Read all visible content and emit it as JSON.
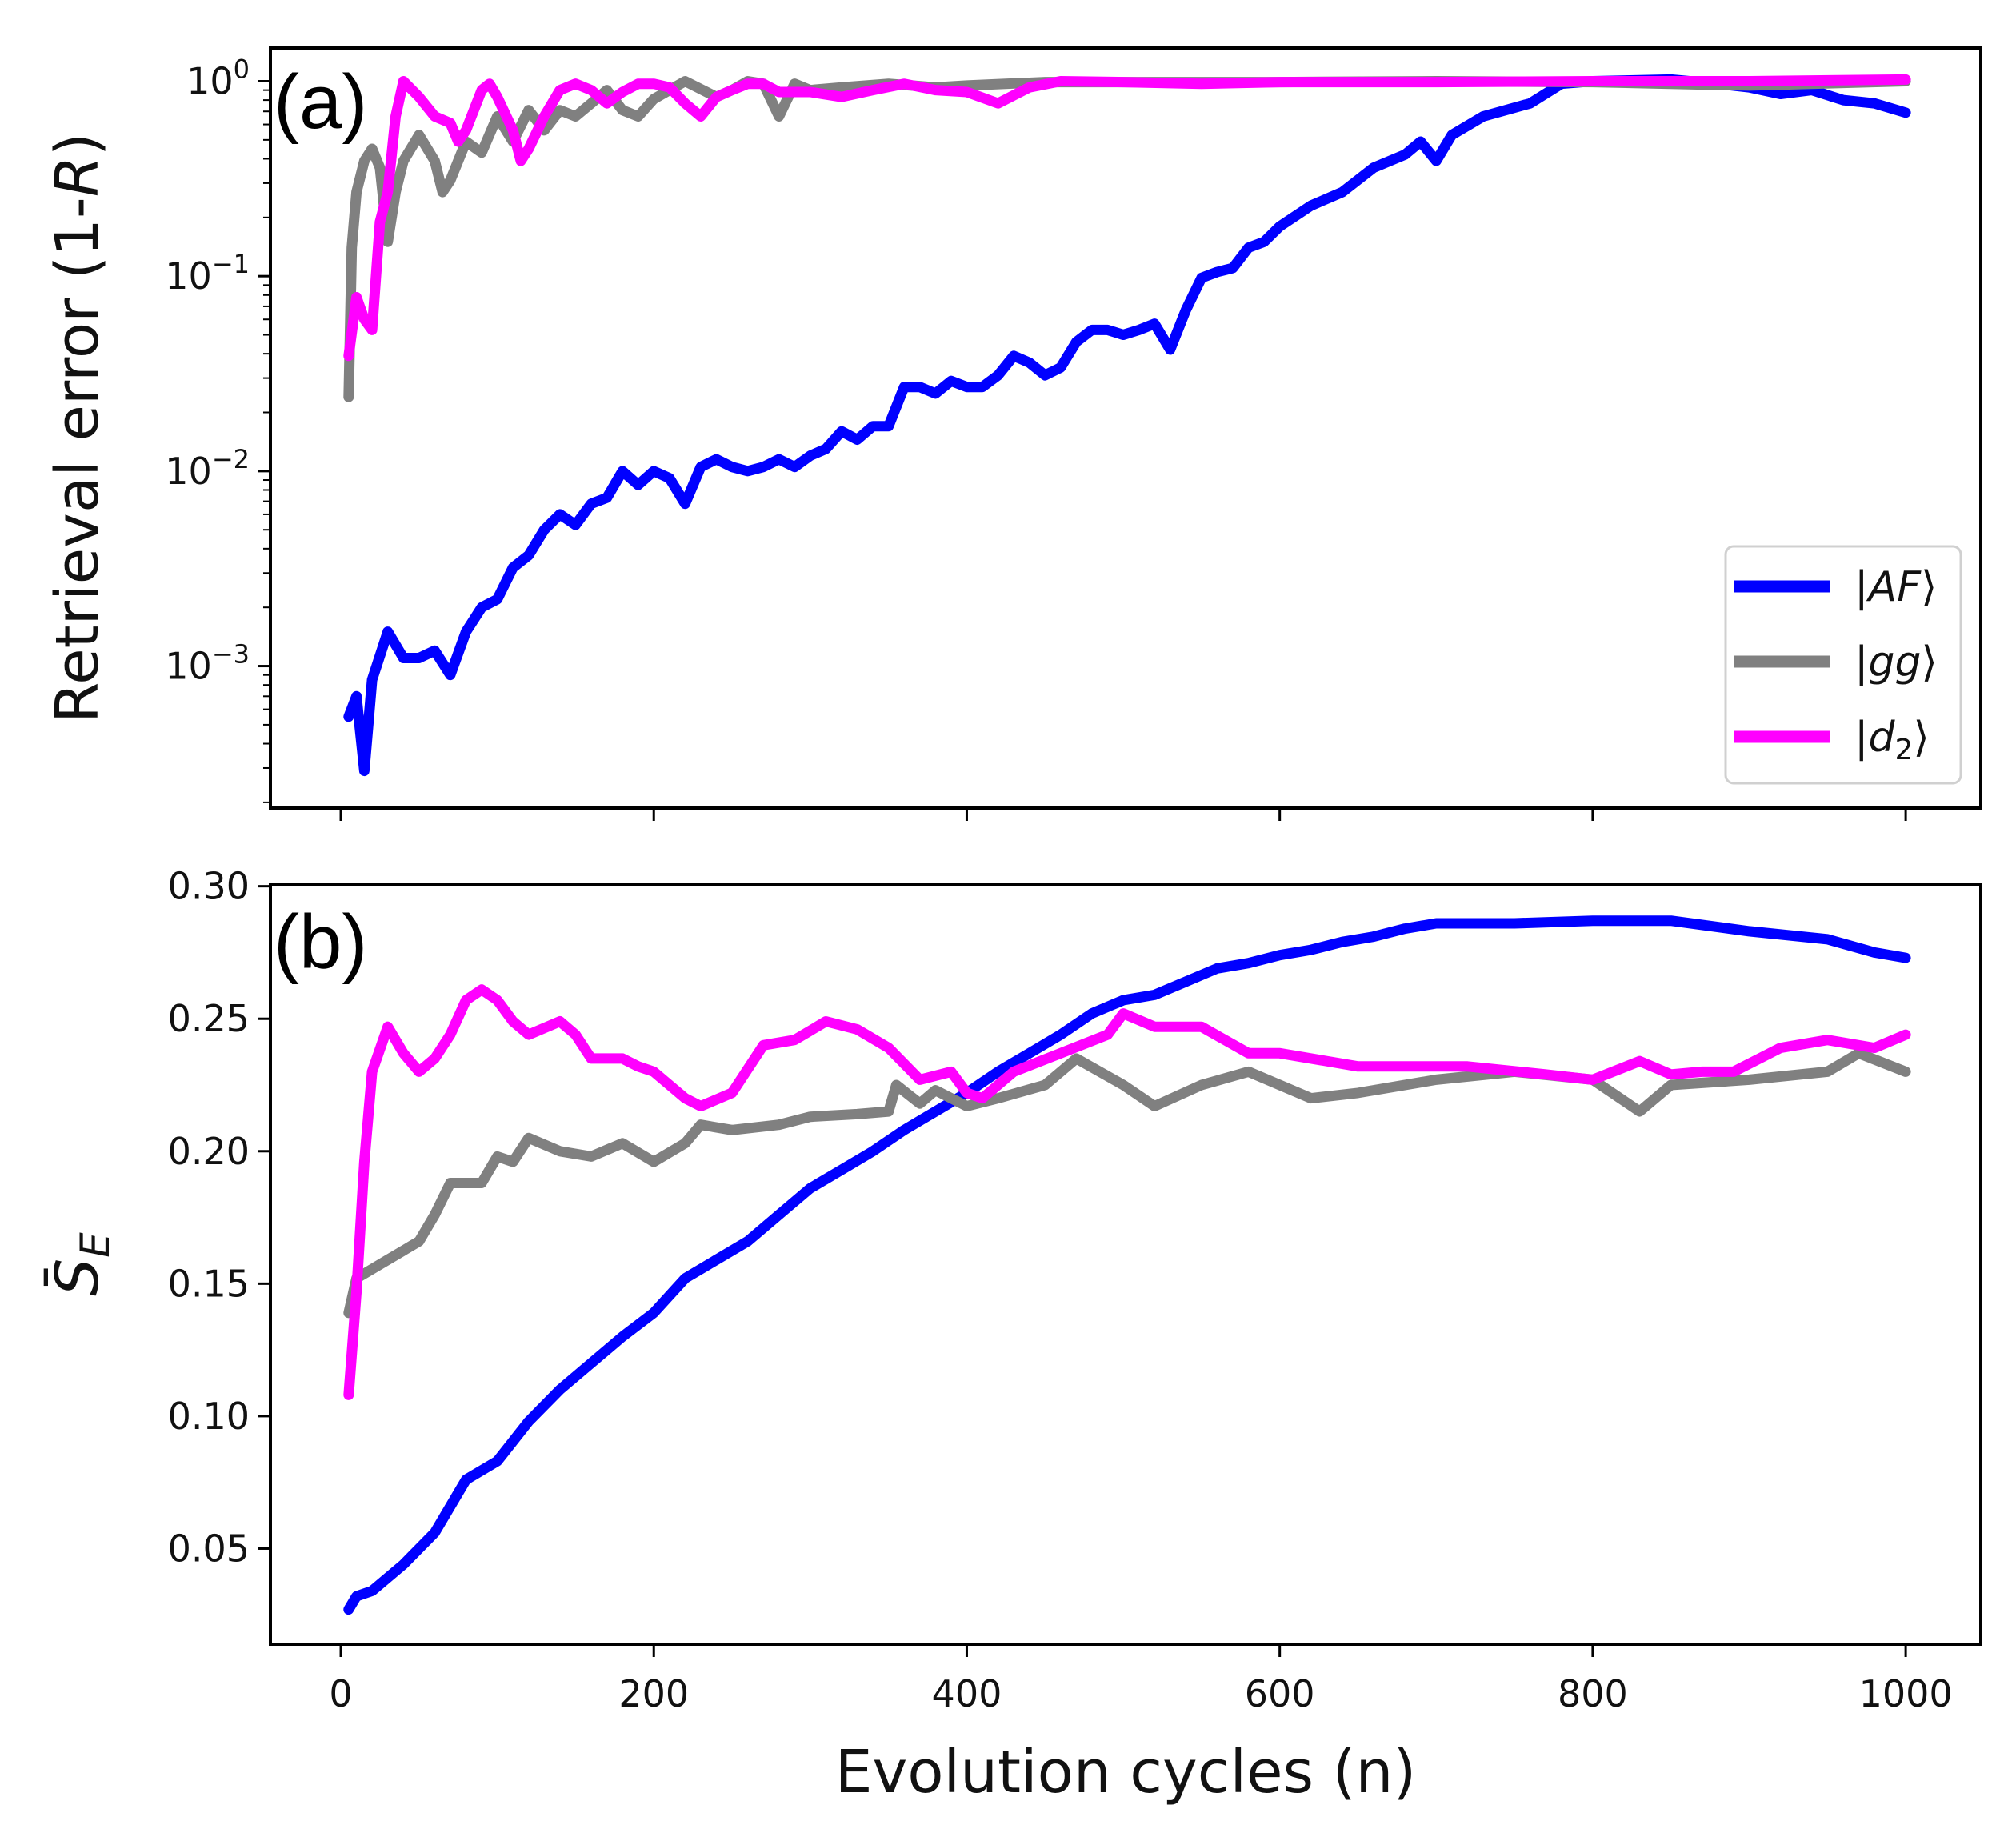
{
  "chart_data": [
    {
      "type": "line",
      "panel_label": "(a)",
      "ylabel_main": "Retrieval error (1-",
      "ylabel_italic": "R",
      "ylabel_end": ")",
      "yscale": "log",
      "ylim": [
        0.000187,
        1.48
      ],
      "xlim": [
        -45,
        1048
      ],
      "yticks": [
        {
          "v": 1,
          "base": "10",
          "exp": "0"
        },
        {
          "v": 0.1,
          "base": "10",
          "exp": "−1"
        },
        {
          "v": 0.01,
          "base": "10",
          "exp": "−2"
        },
        {
          "v": 0.001,
          "base": "10",
          "exp": "−3"
        }
      ],
      "xticks": [
        0,
        200,
        400,
        600,
        800,
        1000
      ],
      "legend": {
        "placement": "lower-right",
        "entries": [
          {
            "ket_open": "|",
            "name": "AF",
            "ket_close": "⟩",
            "color": "#0000ff"
          },
          {
            "ket_open": "|",
            "name": "gg",
            "ket_close": "⟩",
            "color": "#808080"
          },
          {
            "ket_open": "|",
            "name": "d",
            "sub": "2",
            "ket_close": "⟩",
            "color": "#ff00ff"
          }
        ]
      },
      "series": [
        {
          "name": "|AF⟩",
          "color": "#0000ff",
          "x": [
            5,
            10,
            15,
            20,
            30,
            40,
            50,
            60,
            70,
            80,
            90,
            100,
            110,
            120,
            130,
            140,
            150,
            160,
            170,
            180,
            190,
            200,
            210,
            220,
            230,
            240,
            250,
            260,
            270,
            280,
            290,
            300,
            310,
            320,
            330,
            340,
            350,
            360,
            370,
            380,
            390,
            400,
            410,
            420,
            430,
            440,
            450,
            460,
            470,
            480,
            490,
            500,
            510,
            520,
            530,
            540,
            550,
            560,
            570,
            580,
            590,
            600,
            620,
            640,
            660,
            680,
            690,
            700,
            710,
            730,
            760,
            780,
            800,
            850,
            880,
            900,
            920,
            940,
            960,
            980,
            1000
          ],
          "y": [
            0.00055,
            0.0007,
            0.00029,
            0.00085,
            0.0015,
            0.0011,
            0.0011,
            0.0012,
            0.0009,
            0.0015,
            0.002,
            0.0022,
            0.0032,
            0.0037,
            0.005,
            0.006,
            0.0053,
            0.0068,
            0.0073,
            0.01,
            0.0085,
            0.01,
            0.0092,
            0.0068,
            0.0105,
            0.0115,
            0.0105,
            0.01,
            0.0105,
            0.0115,
            0.0105,
            0.012,
            0.013,
            0.016,
            0.0145,
            0.017,
            0.017,
            0.027,
            0.027,
            0.025,
            0.029,
            0.027,
            0.027,
            0.031,
            0.039,
            0.036,
            0.031,
            0.034,
            0.046,
            0.053,
            0.053,
            0.05,
            0.053,
            0.057,
            0.042,
            0.067,
            0.098,
            0.105,
            0.11,
            0.14,
            0.15,
            0.18,
            0.23,
            0.27,
            0.36,
            0.42,
            0.49,
            0.39,
            0.53,
            0.66,
            0.77,
            0.97,
            1.0,
            1.02,
            0.97,
            0.93,
            0.86,
            0.9,
            0.8,
            0.77,
            0.69
          ]
        },
        {
          "name": "|gg⟩",
          "color": "#808080",
          "x": [
            5,
            7,
            10,
            15,
            20,
            25,
            30,
            35,
            40,
            50,
            60,
            65,
            70,
            80,
            90,
            100,
            110,
            120,
            130,
            140,
            150,
            160,
            170,
            180,
            190,
            200,
            210,
            220,
            240,
            250,
            260,
            270,
            280,
            290,
            300,
            320,
            350,
            380,
            400,
            450,
            500,
            600,
            700,
            800,
            900,
            1000
          ],
          "y": [
            0.024,
            0.14,
            0.27,
            0.39,
            0.45,
            0.36,
            0.15,
            0.27,
            0.39,
            0.53,
            0.39,
            0.27,
            0.31,
            0.49,
            0.43,
            0.66,
            0.49,
            0.71,
            0.56,
            0.71,
            0.66,
            0.77,
            0.9,
            0.71,
            0.66,
            0.81,
            0.9,
            1.0,
            0.83,
            0.9,
            1.0,
            0.97,
            0.66,
            0.97,
            0.9,
            0.93,
            0.97,
            0.93,
            0.95,
            0.99,
            0.99,
            0.99,
            1.0,
            0.99,
            0.95,
            1.0
          ]
        },
        {
          "name": "|d₂⟩",
          "color": "#ff00ff",
          "x": [
            5,
            10,
            15,
            20,
            25,
            30,
            35,
            40,
            50,
            60,
            70,
            75,
            80,
            90,
            95,
            100,
            110,
            115,
            120,
            130,
            140,
            150,
            160,
            170,
            180,
            190,
            200,
            210,
            220,
            230,
            240,
            250,
            260,
            270,
            280,
            300,
            320,
            340,
            360,
            380,
            400,
            420,
            440,
            460,
            500,
            550,
            600,
            700,
            800,
            900,
            1000
          ],
          "y": [
            0.039,
            0.078,
            0.06,
            0.053,
            0.19,
            0.27,
            0.66,
            1.0,
            0.83,
            0.66,
            0.61,
            0.49,
            0.56,
            0.9,
            0.97,
            0.83,
            0.56,
            0.39,
            0.45,
            0.66,
            0.9,
            0.97,
            0.9,
            0.77,
            0.88,
            0.97,
            0.97,
            0.93,
            0.77,
            0.66,
            0.83,
            0.9,
            0.97,
            0.97,
            0.88,
            0.88,
            0.83,
            0.9,
            0.97,
            0.9,
            0.88,
            0.77,
            0.93,
            1.0,
            0.99,
            0.97,
            0.99,
            0.99,
            1.0,
            1.0,
            1.02
          ]
        }
      ]
    },
    {
      "type": "line",
      "panel_label": "(b)",
      "ylabel_base": "S",
      "ylabel_sub": "E",
      "ylabel_bar": "¯",
      "xlabel": "Evolution cycles (n)",
      "ylim": [
        0.0139,
        0.3005
      ],
      "xlim": [
        -45,
        1048
      ],
      "yticks": [
        "0.30",
        "0.25",
        "0.20",
        "0.15",
        "0.10",
        "0.05"
      ],
      "xticks": [
        "0",
        "200",
        "400",
        "600",
        "800",
        "1000"
      ],
      "series": [
        {
          "name": "|AF⟩",
          "color": "#0000ff",
          "x": [
            5,
            10,
            20,
            40,
            60,
            80,
            100,
            120,
            140,
            160,
            180,
            200,
            220,
            240,
            260,
            280,
            300,
            320,
            340,
            360,
            380,
            400,
            420,
            440,
            460,
            480,
            500,
            520,
            540,
            560,
            580,
            600,
            620,
            640,
            660,
            680,
            700,
            750,
            800,
            850,
            900,
            950,
            980,
            1000
          ],
          "y": [
            0.027,
            0.032,
            0.034,
            0.044,
            0.056,
            0.076,
            0.083,
            0.098,
            0.11,
            0.12,
            0.13,
            0.139,
            0.152,
            0.159,
            0.166,
            0.176,
            0.186,
            0.193,
            0.2,
            0.208,
            0.215,
            0.222,
            0.23,
            0.237,
            0.244,
            0.252,
            0.257,
            0.259,
            0.264,
            0.269,
            0.271,
            0.274,
            0.276,
            0.279,
            0.281,
            0.284,
            0.286,
            0.286,
            0.287,
            0.287,
            0.283,
            0.28,
            0.275,
            0.273
          ]
        },
        {
          "name": "|gg⟩",
          "color": "#808080",
          "x": [
            5,
            10,
            30,
            50,
            60,
            70,
            80,
            90,
            100,
            110,
            120,
            140,
            160,
            180,
            200,
            220,
            230,
            250,
            280,
            300,
            330,
            350,
            355,
            370,
            380,
            400,
            420,
            450,
            470,
            500,
            520,
            550,
            580,
            600,
            620,
            650,
            700,
            750,
            800,
            830,
            850,
            900,
            950,
            970,
            1000
          ],
          "y": [
            0.139,
            0.152,
            0.159,
            0.166,
            0.176,
            0.188,
            0.188,
            0.188,
            0.198,
            0.196,
            0.205,
            0.2,
            0.198,
            0.203,
            0.196,
            0.203,
            0.21,
            0.208,
            0.21,
            0.213,
            0.214,
            0.215,
            0.225,
            0.218,
            0.223,
            0.217,
            0.22,
            0.225,
            0.235,
            0.225,
            0.217,
            0.225,
            0.23,
            0.225,
            0.22,
            0.222,
            0.227,
            0.23,
            0.227,
            0.215,
            0.225,
            0.227,
            0.23,
            0.237,
            0.23
          ]
        },
        {
          "name": "|d₂⟩",
          "color": "#ff00ff",
          "x": [
            5,
            10,
            15,
            20,
            30,
            40,
            50,
            60,
            70,
            80,
            90,
            100,
            110,
            120,
            140,
            150,
            160,
            180,
            190,
            200,
            220,
            230,
            250,
            270,
            290,
            310,
            330,
            350,
            370,
            390,
            400,
            410,
            430,
            460,
            490,
            500,
            520,
            550,
            580,
            600,
            650,
            680,
            720,
            770,
            800,
            830,
            850,
            870,
            890,
            920,
            950,
            980,
            1000
          ],
          "y": [
            0.108,
            0.147,
            0.196,
            0.23,
            0.247,
            0.237,
            0.23,
            0.235,
            0.244,
            0.257,
            0.261,
            0.257,
            0.249,
            0.244,
            0.249,
            0.244,
            0.235,
            0.235,
            0.232,
            0.23,
            0.22,
            0.217,
            0.222,
            0.24,
            0.242,
            0.249,
            0.246,
            0.239,
            0.227,
            0.23,
            0.222,
            0.22,
            0.23,
            0.237,
            0.244,
            0.252,
            0.247,
            0.247,
            0.237,
            0.237,
            0.232,
            0.232,
            0.232,
            0.229,
            0.227,
            0.234,
            0.229,
            0.23,
            0.23,
            0.239,
            0.242,
            0.239,
            0.244
          ]
        }
      ]
    }
  ]
}
